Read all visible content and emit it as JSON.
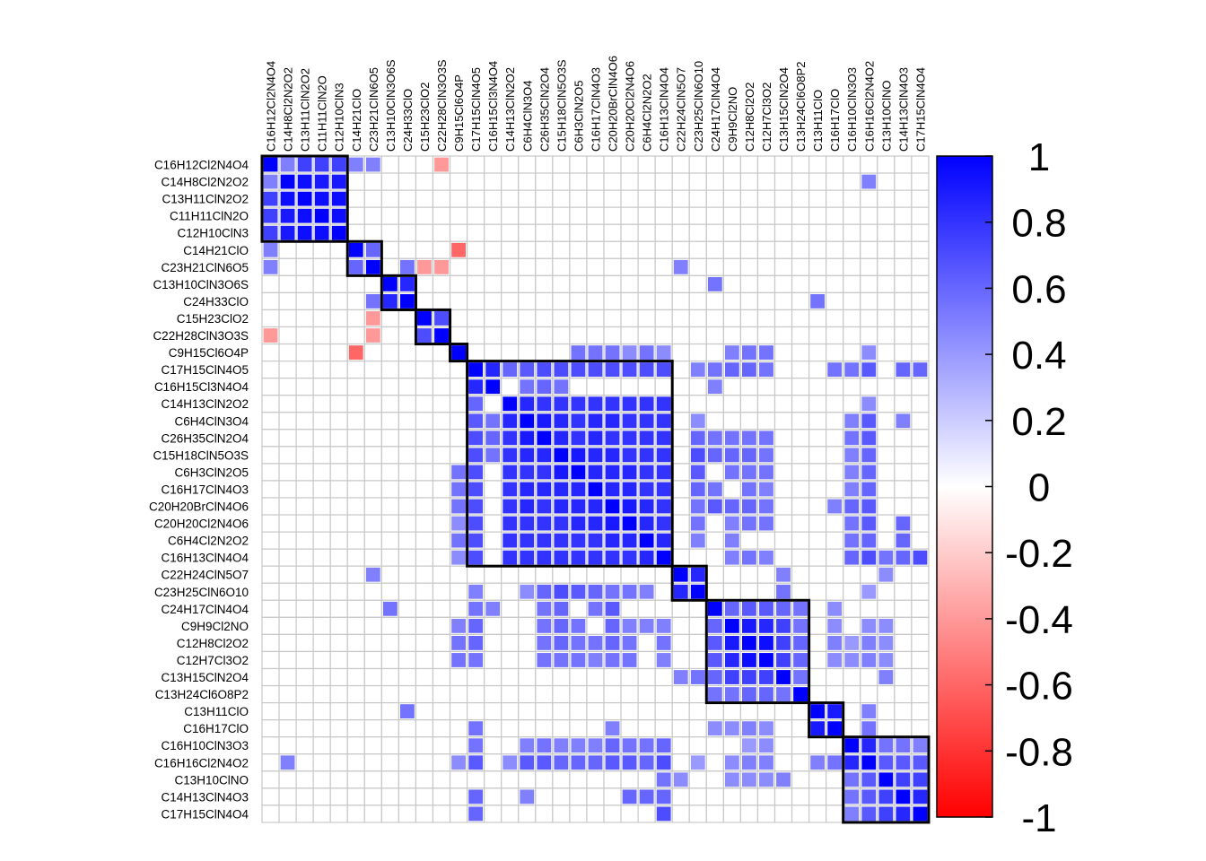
{
  "chart_data": {
    "type": "heatmap",
    "variables": [
      "C16H12Cl2N4O4",
      "C14H8Cl2N2O2",
      "C13H11ClN2O2",
      "C11H11ClN2O",
      "C12H10ClN3",
      "C14H21ClO",
      "C23H21ClN6O5",
      "C13H10ClN3O6S",
      "C24H33ClO",
      "C15H23ClO2",
      "C22H28ClN3O3S",
      "C9H15Cl6O4P",
      "C17H15ClN4O5",
      "C16H15Cl3N4O4",
      "C14H13ClN2O2",
      "C6H4ClN3O4",
      "C26H35ClN2O4",
      "C15H18ClN5O3S",
      "C6H3ClN2O5",
      "C16H17ClN4O3",
      "C20H20BrClN4O6",
      "C20H20Cl2N4O6",
      "C6H4Cl2N2O2",
      "C16H13ClN4O4",
      "C22H24ClN5O7",
      "C23H25ClN6O10",
      "C24H17ClN4O4",
      "C9H9Cl2NO",
      "C12H8Cl2O2",
      "C12H7Cl3O2",
      "C13H15ClN2O4",
      "C13H24Cl6O8P2",
      "C13H11ClO",
      "C16H17ClO",
      "C16H10ClN3O3",
      "C16H16Cl2N4O2",
      "C13H10ClNO",
      "C14H13ClN4O3",
      "C17H15ClN4O4"
    ],
    "cluster_sizes": [
      5,
      2,
      2,
      2,
      1,
      12,
      2,
      6,
      2,
      5
    ],
    "colorbar": {
      "range": [
        -1,
        1
      ],
      "ticks": [
        "1",
        "0.8",
        "0.6",
        "0.4",
        "0.2",
        "0",
        "-0.2",
        "-0.4",
        "-0.6",
        "-0.8",
        "-1"
      ]
    },
    "colors": {
      "positive": "#0000ff",
      "zero": "#ffffff",
      "negative": "#ff0000",
      "grid": "#c8c8c8",
      "box": "#000000"
    },
    "diagonal": 1,
    "values": [
      [
        0,
        1,
        0.5
      ],
      [
        0,
        2,
        0.75
      ],
      [
        0,
        3,
        0.75
      ],
      [
        0,
        4,
        0.75
      ],
      [
        0,
        5,
        0.5
      ],
      [
        0,
        6,
        0.5
      ],
      [
        0,
        10,
        -0.4
      ],
      [
        1,
        2,
        0.95
      ],
      [
        1,
        3,
        0.9
      ],
      [
        1,
        4,
        0.9
      ],
      [
        1,
        35,
        0.5
      ],
      [
        2,
        3,
        0.95
      ],
      [
        2,
        4,
        0.95
      ],
      [
        3,
        4,
        0.95
      ],
      [
        5,
        6,
        0.6
      ],
      [
        5,
        11,
        -0.6
      ],
      [
        6,
        8,
        0.55
      ],
      [
        6,
        9,
        -0.4
      ],
      [
        6,
        10,
        -0.4
      ],
      [
        6,
        24,
        0.5
      ],
      [
        7,
        8,
        0.85
      ],
      [
        7,
        26,
        0.55
      ],
      [
        8,
        32,
        0.55
      ],
      [
        9,
        10,
        0.7
      ],
      [
        11,
        18,
        0.55
      ],
      [
        11,
        19,
        0.55
      ],
      [
        11,
        20,
        0.55
      ],
      [
        11,
        21,
        0.45
      ],
      [
        11,
        22,
        0.55
      ],
      [
        11,
        23,
        0.45
      ],
      [
        11,
        27,
        0.5
      ],
      [
        11,
        28,
        0.55
      ],
      [
        11,
        29,
        0.55
      ],
      [
        11,
        35,
        0.45
      ],
      [
        12,
        13,
        0.85
      ],
      [
        12,
        14,
        0.6
      ],
      [
        12,
        15,
        0.65
      ],
      [
        12,
        16,
        0.7
      ],
      [
        12,
        17,
        0.7
      ],
      [
        12,
        18,
        0.7
      ],
      [
        12,
        19,
        0.7
      ],
      [
        12,
        20,
        0.7
      ],
      [
        12,
        21,
        0.7
      ],
      [
        12,
        22,
        0.7
      ],
      [
        12,
        23,
        0.7
      ],
      [
        12,
        25,
        0.5
      ],
      [
        12,
        26,
        0.55
      ],
      [
        12,
        27,
        0.6
      ],
      [
        12,
        28,
        0.6
      ],
      [
        12,
        29,
        0.55
      ],
      [
        12,
        33,
        0.55
      ],
      [
        12,
        34,
        0.55
      ],
      [
        12,
        35,
        0.65
      ],
      [
        12,
        37,
        0.6
      ],
      [
        12,
        38,
        0.6
      ],
      [
        13,
        15,
        0.55
      ],
      [
        13,
        16,
        0.6
      ],
      [
        13,
        17,
        0.55
      ],
      [
        13,
        26,
        0.5
      ],
      [
        14,
        15,
        0.85
      ],
      [
        14,
        16,
        0.8
      ],
      [
        14,
        17,
        0.8
      ],
      [
        14,
        18,
        0.8
      ],
      [
        14,
        19,
        0.8
      ],
      [
        14,
        20,
        0.8
      ],
      [
        14,
        21,
        0.8
      ],
      [
        14,
        22,
        0.8
      ],
      [
        14,
        23,
        0.8
      ],
      [
        14,
        35,
        0.45
      ],
      [
        15,
        16,
        0.9
      ],
      [
        15,
        17,
        0.85
      ],
      [
        15,
        18,
        0.8
      ],
      [
        15,
        19,
        0.85
      ],
      [
        15,
        20,
        0.85
      ],
      [
        15,
        21,
        0.8
      ],
      [
        15,
        22,
        0.8
      ],
      [
        15,
        23,
        0.8
      ],
      [
        15,
        25,
        0.45
      ],
      [
        15,
        34,
        0.5
      ],
      [
        15,
        35,
        0.65
      ],
      [
        15,
        37,
        0.5
      ],
      [
        16,
        17,
        0.85
      ],
      [
        16,
        18,
        0.8
      ],
      [
        16,
        19,
        0.85
      ],
      [
        16,
        20,
        0.8
      ],
      [
        16,
        21,
        0.8
      ],
      [
        16,
        22,
        0.8
      ],
      [
        16,
        23,
        0.8
      ],
      [
        16,
        25,
        0.6
      ],
      [
        16,
        26,
        0.55
      ],
      [
        16,
        27,
        0.55
      ],
      [
        16,
        28,
        0.55
      ],
      [
        16,
        29,
        0.55
      ],
      [
        16,
        34,
        0.55
      ],
      [
        16,
        35,
        0.65
      ],
      [
        17,
        18,
        0.9
      ],
      [
        17,
        19,
        0.85
      ],
      [
        17,
        20,
        0.85
      ],
      [
        17,
        21,
        0.8
      ],
      [
        17,
        22,
        0.8
      ],
      [
        17,
        23,
        0.8
      ],
      [
        17,
        25,
        0.7
      ],
      [
        17,
        26,
        0.6
      ],
      [
        17,
        27,
        0.6
      ],
      [
        17,
        28,
        0.6
      ],
      [
        17,
        29,
        0.55
      ],
      [
        17,
        34,
        0.5
      ],
      [
        17,
        35,
        0.6
      ],
      [
        18,
        19,
        0.85
      ],
      [
        18,
        20,
        0.85
      ],
      [
        18,
        21,
        0.85
      ],
      [
        18,
        22,
        0.8
      ],
      [
        18,
        23,
        0.8
      ],
      [
        18,
        25,
        0.65
      ],
      [
        18,
        27,
        0.55
      ],
      [
        18,
        28,
        0.55
      ],
      [
        18,
        29,
        0.55
      ],
      [
        18,
        34,
        0.5
      ],
      [
        18,
        35,
        0.6
      ],
      [
        19,
        20,
        0.85
      ],
      [
        19,
        21,
        0.85
      ],
      [
        19,
        22,
        0.8
      ],
      [
        19,
        23,
        0.8
      ],
      [
        19,
        25,
        0.6
      ],
      [
        19,
        26,
        0.55
      ],
      [
        19,
        28,
        0.55
      ],
      [
        19,
        29,
        0.5
      ],
      [
        19,
        34,
        0.5
      ],
      [
        19,
        35,
        0.6
      ],
      [
        20,
        21,
        0.9
      ],
      [
        20,
        22,
        0.85
      ],
      [
        20,
        23,
        0.8
      ],
      [
        20,
        25,
        0.55
      ],
      [
        20,
        26,
        0.65
      ],
      [
        20,
        27,
        0.6
      ],
      [
        20,
        28,
        0.6
      ],
      [
        20,
        29,
        0.55
      ],
      [
        20,
        33,
        0.5
      ],
      [
        20,
        34,
        0.6
      ],
      [
        20,
        35,
        0.65
      ],
      [
        21,
        22,
        0.85
      ],
      [
        21,
        23,
        0.8
      ],
      [
        21,
        25,
        0.55
      ],
      [
        21,
        27,
        0.5
      ],
      [
        21,
        28,
        0.55
      ],
      [
        21,
        29,
        0.55
      ],
      [
        21,
        34,
        0.55
      ],
      [
        21,
        35,
        0.65
      ],
      [
        21,
        37,
        0.6
      ],
      [
        22,
        23,
        0.85
      ],
      [
        22,
        25,
        0.5
      ],
      [
        22,
        27,
        0.5
      ],
      [
        22,
        34,
        0.55
      ],
      [
        22,
        35,
        0.6
      ],
      [
        22,
        37,
        0.6
      ],
      [
        23,
        27,
        0.5
      ],
      [
        23,
        28,
        0.55
      ],
      [
        23,
        29,
        0.5
      ],
      [
        23,
        34,
        0.6
      ],
      [
        23,
        35,
        0.7
      ],
      [
        23,
        36,
        0.55
      ],
      [
        23,
        37,
        0.6
      ],
      [
        23,
        38,
        0.7
      ],
      [
        24,
        25,
        0.85
      ],
      [
        24,
        30,
        0.5
      ],
      [
        24,
        36,
        0.45
      ],
      [
        25,
        30,
        0.55
      ],
      [
        25,
        35,
        0.4
      ],
      [
        26,
        27,
        0.6
      ],
      [
        26,
        28,
        0.65
      ],
      [
        26,
        29,
        0.65
      ],
      [
        26,
        30,
        0.6
      ],
      [
        26,
        31,
        0.55
      ],
      [
        26,
        33,
        0.45
      ],
      [
        27,
        28,
        0.9
      ],
      [
        27,
        29,
        0.85
      ],
      [
        27,
        30,
        0.75
      ],
      [
        27,
        31,
        0.55
      ],
      [
        27,
        33,
        0.45
      ],
      [
        27,
        35,
        0.45
      ],
      [
        27,
        36,
        0.45
      ],
      [
        28,
        29,
        0.95
      ],
      [
        28,
        30,
        0.75
      ],
      [
        28,
        31,
        0.6
      ],
      [
        28,
        33,
        0.5
      ],
      [
        28,
        34,
        0.4
      ],
      [
        28,
        35,
        0.5
      ],
      [
        28,
        36,
        0.45
      ],
      [
        29,
        30,
        0.75
      ],
      [
        29,
        31,
        0.6
      ],
      [
        29,
        33,
        0.45
      ],
      [
        29,
        34,
        0.45
      ],
      [
        29,
        35,
        0.5
      ],
      [
        29,
        36,
        0.45
      ],
      [
        30,
        31,
        0.55
      ],
      [
        30,
        36,
        0.5
      ],
      [
        32,
        33,
        0.9
      ],
      [
        32,
        35,
        0.5
      ],
      [
        33,
        35,
        0.55
      ],
      [
        34,
        35,
        0.85
      ],
      [
        34,
        36,
        0.55
      ],
      [
        34,
        37,
        0.55
      ],
      [
        34,
        38,
        0.5
      ],
      [
        35,
        36,
        0.65
      ],
      [
        35,
        37,
        0.65
      ],
      [
        35,
        38,
        0.65
      ],
      [
        36,
        37,
        0.75
      ],
      [
        36,
        38,
        0.75
      ],
      [
        37,
        38,
        0.85
      ]
    ]
  }
}
